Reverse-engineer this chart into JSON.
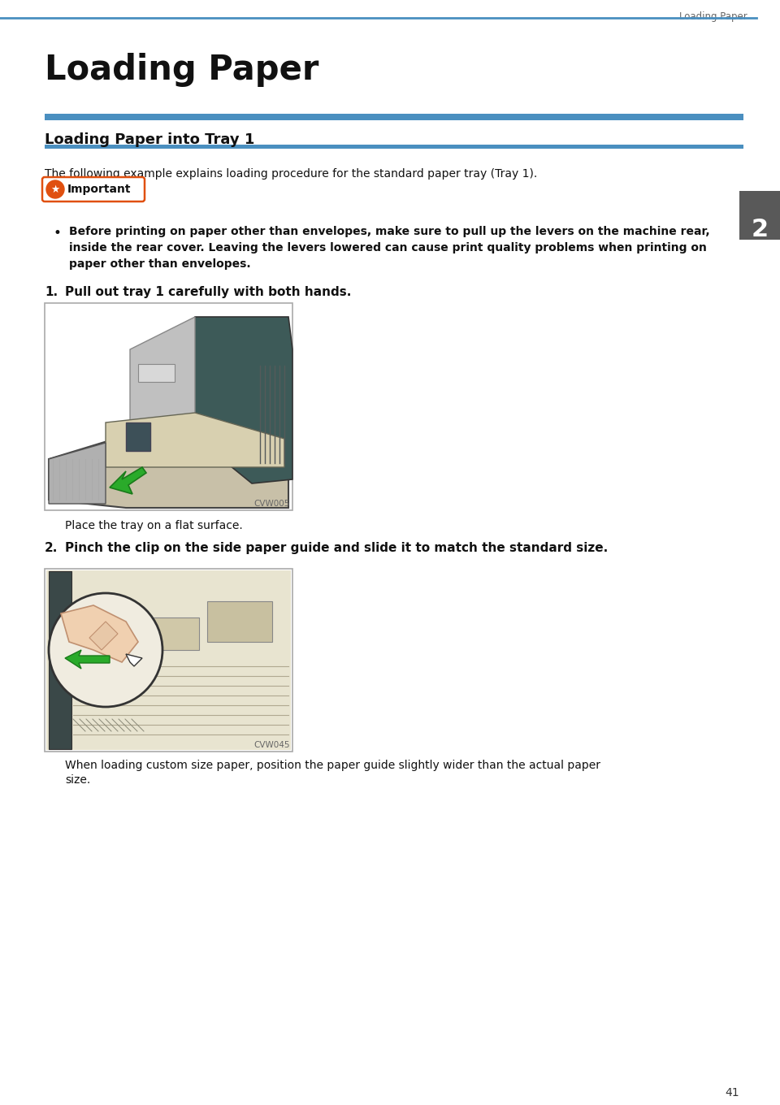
{
  "page_header_text": "Loading Paper",
  "header_line_color": "#4a8fc0",
  "main_title": "Loading Paper",
  "section_title": "Loading Paper into Tray 1",
  "intro_text": "The following example explains loading procedure for the standard paper tray (Tray 1).",
  "important_label": "Important",
  "important_border": "#e05010",
  "important_star_color": "#e05010",
  "bullet_text_line1": "Before printing on paper other than envelopes, make sure to pull up the levers on the machine rear,",
  "bullet_text_line2": "inside the rear cover. Leaving the levers lowered can cause print quality problems when printing on",
  "bullet_text_line3": "paper other than envelopes.",
  "step1_text": "Pull out tray 1 carefully with both hands.",
  "step1_caption": "CVW005",
  "step1_sub": "Place the tray on a flat surface.",
  "step2_text": "Pinch the clip on the side paper guide and slide it to match the standard size.",
  "step2_caption": "CVW045",
  "step2_sub_line1": "When loading custom size paper, position the paper guide slightly wider than the actual paper",
  "step2_sub_line2": "size.",
  "tab_number": "2",
  "tab_bg": "#595959",
  "page_number": "41",
  "bg_color": "#ffffff",
  "blue_line": "#4a8fc0",
  "dark_teal": "#3d5a5a",
  "light_gray": "#c8c8c8",
  "beige": "#d8d0b8",
  "green_arrow": "#2aaa2a",
  "skin": "#f0d0b0"
}
